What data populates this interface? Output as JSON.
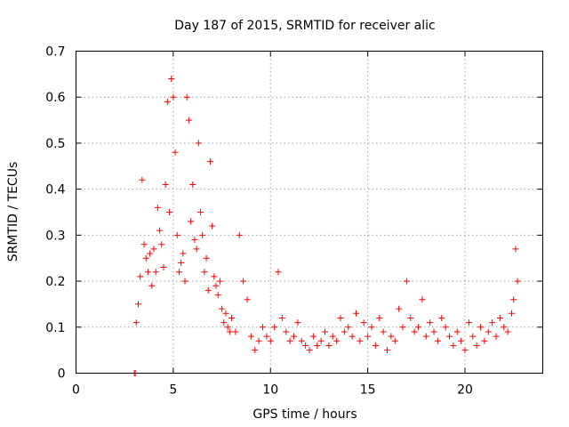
{
  "chart_data": {
    "type": "scatter",
    "title": "Day 187 of 2015, SRMTID for receiver alic",
    "xlabel": "GPS time / hours",
    "ylabel": "SRMTID / TECUs",
    "xlim": [
      0,
      24
    ],
    "ylim": [
      0,
      0.7
    ],
    "xticks": [
      0,
      5,
      10,
      15,
      20
    ],
    "xtick_labels": [
      "0",
      "5",
      "10",
      "15",
      "20"
    ],
    "yticks": [
      0,
      0.1,
      0.2,
      0.3,
      0.4,
      0.5,
      0.6,
      0.7
    ],
    "ytick_labels": [
      "0",
      "0.1",
      "0.2",
      "0.3",
      "0.4",
      "0.5",
      "0.6",
      "0.7"
    ],
    "grid": true,
    "legend": "none",
    "marker": "plus",
    "color": "#ff0000",
    "series": [
      {
        "name": "SRMTID",
        "x": [
          3.0,
          3.05,
          3.1,
          3.2,
          3.3,
          3.4,
          3.5,
          3.6,
          3.7,
          3.8,
          3.9,
          4.0,
          4.1,
          4.2,
          4.3,
          4.4,
          4.5,
          4.6,
          4.7,
          4.8,
          4.9,
          5.0,
          5.1,
          5.2,
          5.3,
          5.4,
          5.5,
          5.6,
          5.7,
          5.8,
          5.9,
          6.0,
          6.1,
          6.2,
          6.3,
          6.4,
          6.5,
          6.6,
          6.7,
          6.8,
          6.9,
          7.0,
          7.1,
          7.2,
          7.3,
          7.4,
          7.5,
          7.6,
          7.7,
          7.8,
          7.9,
          8.0,
          8.2,
          8.4,
          8.6,
          8.8,
          9.0,
          9.2,
          9.4,
          9.6,
          9.8,
          10.0,
          10.2,
          10.4,
          10.6,
          10.8,
          11.0,
          11.2,
          11.4,
          11.6,
          11.8,
          12.0,
          12.2,
          12.4,
          12.6,
          12.8,
          13.0,
          13.2,
          13.4,
          13.6,
          13.8,
          14.0,
          14.2,
          14.4,
          14.6,
          14.8,
          15.0,
          15.2,
          15.4,
          15.6,
          15.8,
          16.0,
          16.2,
          16.4,
          16.6,
          16.8,
          17.0,
          17.2,
          17.4,
          17.6,
          17.8,
          18.0,
          18.2,
          18.4,
          18.6,
          18.8,
          19.0,
          19.2,
          19.4,
          19.6,
          19.8,
          20.0,
          20.2,
          20.4,
          20.6,
          20.8,
          21.0,
          21.2,
          21.4,
          21.6,
          21.8,
          22.0,
          22.2,
          22.4,
          22.5,
          22.6,
          22.7
        ],
        "y": [
          0.0,
          0.0,
          0.11,
          0.15,
          0.21,
          0.42,
          0.28,
          0.25,
          0.22,
          0.26,
          0.19,
          0.27,
          0.22,
          0.36,
          0.31,
          0.28,
          0.23,
          0.41,
          0.59,
          0.35,
          0.64,
          0.6,
          0.48,
          0.3,
          0.22,
          0.24,
          0.26,
          0.2,
          0.6,
          0.55,
          0.33,
          0.41,
          0.29,
          0.27,
          0.5,
          0.35,
          0.3,
          0.22,
          0.25,
          0.18,
          0.46,
          0.32,
          0.21,
          0.19,
          0.17,
          0.2,
          0.14,
          0.11,
          0.13,
          0.1,
          0.09,
          0.12,
          0.09,
          0.3,
          0.2,
          0.16,
          0.08,
          0.05,
          0.07,
          0.1,
          0.08,
          0.07,
          0.1,
          0.22,
          0.12,
          0.09,
          0.07,
          0.08,
          0.11,
          0.07,
          0.06,
          0.05,
          0.08,
          0.06,
          0.07,
          0.09,
          0.06,
          0.08,
          0.07,
          0.12,
          0.09,
          0.1,
          0.08,
          0.13,
          0.07,
          0.11,
          0.08,
          0.1,
          0.06,
          0.12,
          0.09,
          0.05,
          0.08,
          0.07,
          0.14,
          0.1,
          0.2,
          0.12,
          0.09,
          0.1,
          0.16,
          0.08,
          0.11,
          0.09,
          0.07,
          0.12,
          0.1,
          0.08,
          0.06,
          0.09,
          0.07,
          0.05,
          0.11,
          0.08,
          0.06,
          0.1,
          0.07,
          0.09,
          0.11,
          0.08,
          0.12,
          0.1,
          0.09,
          0.13,
          0.16,
          0.27,
          0.2
        ]
      }
    ]
  }
}
